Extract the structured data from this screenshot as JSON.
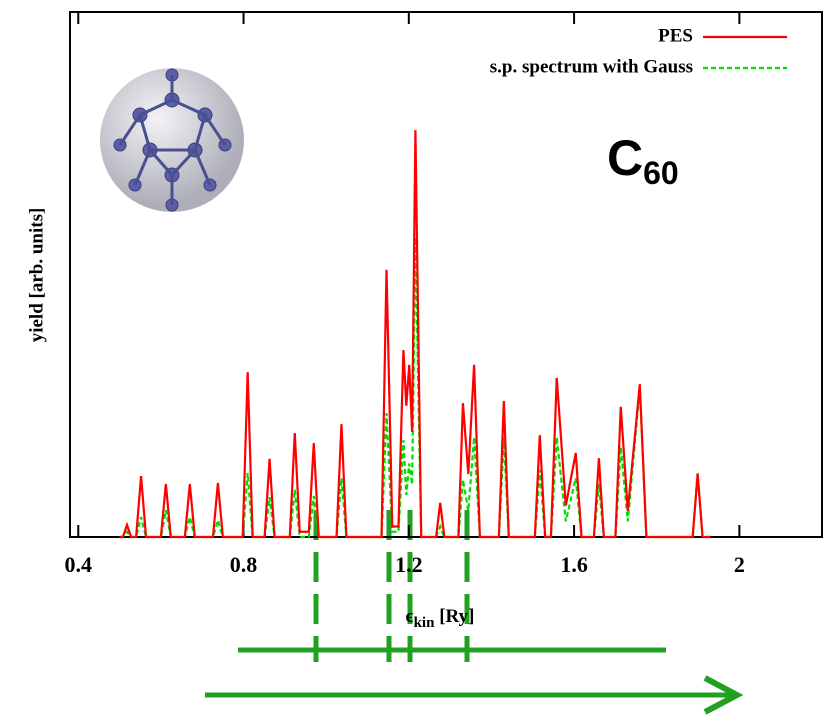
{
  "chart_data": {
    "type": "line",
    "ylabel": "yield [arb. units]",
    "xlabel": {
      "symbol": "ϵ",
      "sub": "kin",
      "rest": " [Ry]"
    },
    "annotation": {
      "main": "C",
      "sub": "60"
    },
    "xlim": [
      0.38,
      2.2
    ],
    "xticks": [
      0.4,
      0.8,
      1.2,
      1.6,
      2
    ],
    "ylim": [
      0,
      1
    ],
    "legend": "upper right",
    "x": [
      0.5,
      0.508,
      0.518,
      0.528,
      0.54,
      0.552,
      0.564,
      0.6,
      0.612,
      0.624,
      0.658,
      0.67,
      0.682,
      0.726,
      0.738,
      0.75,
      0.798,
      0.81,
      0.822,
      0.851,
      0.863,
      0.875,
      0.912,
      0.924,
      0.936,
      0.958,
      0.97,
      0.982,
      1.025,
      1.037,
      1.049,
      1.134,
      1.146,
      1.16,
      1.175,
      1.187,
      1.194,
      1.201,
      1.208,
      1.216,
      1.23,
      1.266,
      1.276,
      1.286,
      1.32,
      1.331,
      1.344,
      1.358,
      1.372,
      1.418,
      1.43,
      1.442,
      1.505,
      1.517,
      1.53,
      1.544,
      1.558,
      1.58,
      1.604,
      1.618,
      1.648,
      1.66,
      1.672,
      1.7,
      1.713,
      1.73,
      1.759,
      1.775,
      1.887,
      1.899,
      1.911,
      1.93
    ],
    "series": [
      {
        "name": "PES",
        "color": "#ff0000",
        "dash": false,
        "values": [
          0,
          0,
          0.023,
          0,
          0,
          0.116,
          0,
          0,
          0.101,
          0,
          0,
          0.101,
          0,
          0,
          0.103,
          0,
          0,
          0.314,
          0,
          0,
          0.149,
          0,
          0,
          0.198,
          0.01,
          0.01,
          0.179,
          0,
          0,
          0.215,
          0,
          0,
          0.509,
          0.02,
          0.02,
          0.356,
          0.25,
          0.328,
          0.2,
          0.775,
          0,
          0,
          0.065,
          0,
          0,
          0.255,
          0.12,
          0.328,
          0,
          0,
          0.259,
          0,
          0,
          0.194,
          0,
          0,
          0.303,
          0.06,
          0.16,
          0,
          0,
          0.15,
          0,
          0,
          0.248,
          0.05,
          0.291,
          0,
          0,
          0.12,
          0,
          0
        ]
      },
      {
        "name": "s.p. spectrum with Gauss",
        "color": "#00dd00",
        "dash": true,
        "values": [
          0,
          0,
          0.01,
          0,
          0,
          0.038,
          0,
          0,
          0.051,
          0,
          0,
          0.038,
          0,
          0,
          0.032,
          0,
          0,
          0.122,
          0,
          0,
          0.076,
          0,
          0,
          0.09,
          0,
          0,
          0.078,
          0,
          0,
          0.112,
          0,
          0,
          0.236,
          0.01,
          0.01,
          0.185,
          0.08,
          0.14,
          0.1,
          0.57,
          0,
          0,
          0.02,
          0,
          0,
          0.109,
          0.05,
          0.19,
          0,
          0,
          0.189,
          0,
          0,
          0.128,
          0,
          0,
          0.19,
          0.03,
          0.112,
          0,
          0,
          0.101,
          0,
          0,
          0.171,
          0.03,
          0.284,
          0,
          0,
          0.122,
          0,
          0
        ]
      }
    ]
  }
}
